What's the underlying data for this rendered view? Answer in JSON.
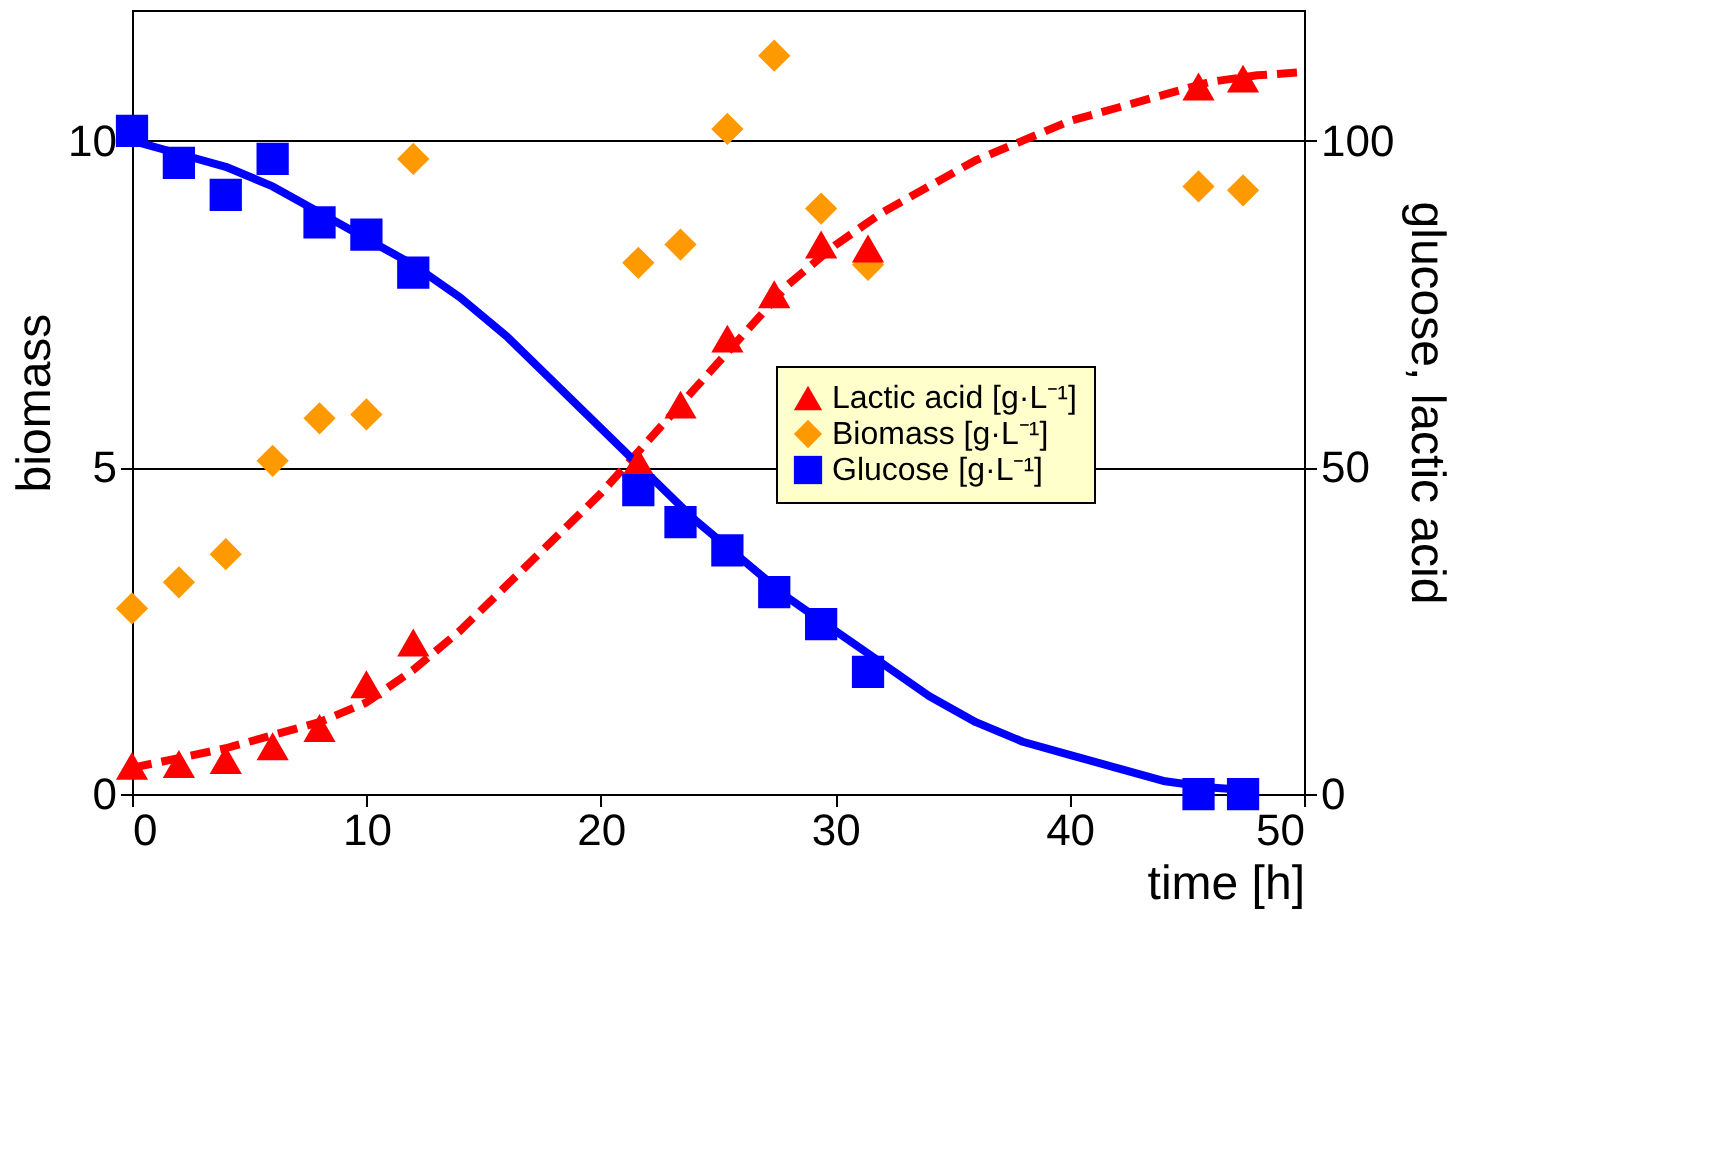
{
  "chart_data": {
    "type": "scatter",
    "xlabel": "time [h]",
    "ylabel": "biomass",
    "y2label": "glucose, lactic acid",
    "xlim": [
      0,
      50
    ],
    "xticks": [
      0,
      10,
      20,
      30,
      40,
      50
    ],
    "ylim": [
      0,
      12
    ],
    "yticks": [
      0,
      5,
      10
    ],
    "y2lim": [
      0,
      120
    ],
    "y2ticks": [
      0,
      50,
      100
    ],
    "grid": "y",
    "legend": "right",
    "series": [
      {
        "name": "Lactic acid [g·L⁻¹]",
        "axis": "y2",
        "marker": "triangle",
        "color": "#ff0000",
        "x": [
          0,
          2,
          4,
          6,
          8,
          10,
          12,
          21.6,
          23.4,
          25.4,
          27.4,
          29.4,
          31.4,
          45.5,
          47.4
        ],
        "values": [
          4.3,
          4.6,
          5.2,
          7.3,
          10.1,
          16.8,
          23.2,
          50.8,
          59.6,
          69.7,
          76.5,
          84.1,
          83.5,
          108.3,
          109.5
        ]
      },
      {
        "name": "Biomass [g·L⁻¹]",
        "marker": "diamond",
        "color": "#ff9900",
        "x": [
          0,
          2,
          4,
          6,
          8,
          10,
          12,
          21.6,
          23.4,
          25.4,
          27.4,
          29.4,
          31.4,
          45.5,
          47.4
        ],
        "values": [
          2.84,
          3.24,
          3.67,
          5.1,
          5.75,
          5.81,
          9.72,
          8.13,
          8.41,
          10.18,
          11.3,
          8.96,
          8.1,
          9.3,
          9.24
        ]
      },
      {
        "name": "Glucose [g·L⁻¹]",
        "axis": "y2",
        "marker": "square",
        "color": "#0000ff",
        "x": [
          0,
          2,
          4,
          6,
          8,
          10,
          12,
          21.6,
          23.4,
          25.4,
          27.4,
          29.4,
          31.4,
          45.5,
          47.4
        ],
        "values": [
          101.5,
          96.6,
          91.7,
          97.2,
          87.5,
          85.6,
          79.8,
          46.5,
          41.6,
          37.3,
          30.9,
          26.0,
          18.7,
          0,
          0
        ]
      },
      {
        "type": "line",
        "axis": "y2",
        "line_style": "dashed",
        "color": "#ff0000",
        "x": [
          0,
          4,
          8,
          10,
          12,
          14,
          16,
          18,
          20,
          22,
          24,
          26,
          28,
          30,
          32,
          34,
          36,
          38,
          40,
          42,
          44,
          46,
          48,
          50
        ],
        "values": [
          4,
          7,
          11,
          14,
          19,
          25,
          32,
          39,
          46,
          54,
          62,
          70,
          78,
          84,
          89,
          93,
          97,
          100,
          103,
          105,
          107,
          109,
          110,
          110.5
        ]
      },
      {
        "type": "line",
        "axis": "y2",
        "line_style": "solid",
        "color": "#0000ff",
        "x": [
          0,
          2,
          4,
          6,
          8,
          10,
          12,
          14,
          16,
          18,
          20,
          22,
          24,
          26,
          28,
          30,
          32,
          34,
          36,
          38,
          40,
          42,
          44,
          46,
          48
        ],
        "values": [
          100,
          98,
          96,
          93,
          89,
          85,
          81,
          76,
          70,
          63,
          56,
          49,
          42,
          36,
          30,
          25,
          20,
          15,
          11,
          8,
          6,
          4,
          2,
          1,
          0.5
        ]
      }
    ]
  }
}
